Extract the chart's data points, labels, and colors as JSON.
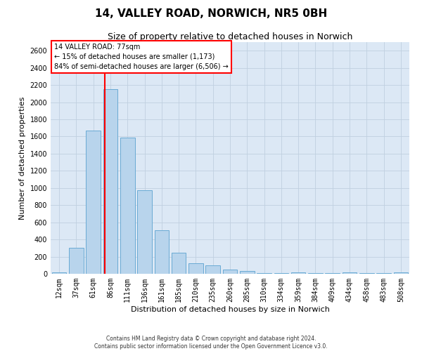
{
  "title": "14, VALLEY ROAD, NORWICH, NR5 0BH",
  "subtitle": "Size of property relative to detached houses in Norwich",
  "xlabel": "Distribution of detached houses by size in Norwich",
  "ylabel": "Number of detached properties",
  "categories": [
    "12sqm",
    "37sqm",
    "61sqm",
    "86sqm",
    "111sqm",
    "136sqm",
    "161sqm",
    "185sqm",
    "210sqm",
    "235sqm",
    "260sqm",
    "285sqm",
    "310sqm",
    "334sqm",
    "359sqm",
    "384sqm",
    "409sqm",
    "434sqm",
    "458sqm",
    "483sqm",
    "508sqm"
  ],
  "values": [
    20,
    300,
    1670,
    2150,
    1590,
    970,
    510,
    245,
    120,
    100,
    50,
    35,
    5,
    5,
    20,
    5,
    5,
    20,
    5,
    5,
    20
  ],
  "bar_color": "#b8d4ec",
  "bar_edge_color": "#6aaad4",
  "annotation_title": "14 VALLEY ROAD: 77sqm",
  "annotation_line1": "← 15% of detached houses are smaller (1,173)",
  "annotation_line2": "84% of semi-detached houses are larger (6,506) →",
  "property_bar_index": 3,
  "ylim": [
    0,
    2700
  ],
  "yticks": [
    0,
    200,
    400,
    600,
    800,
    1000,
    1200,
    1400,
    1600,
    1800,
    2000,
    2200,
    2400,
    2600
  ],
  "footnote1": "Contains HM Land Registry data © Crown copyright and database right 2024.",
  "footnote2": "Contains public sector information licensed under the Open Government Licence v3.0.",
  "bg_color": "#ffffff",
  "plot_bg_color": "#dce8f5",
  "grid_color": "#c0d0e0",
  "title_fontsize": 11,
  "subtitle_fontsize": 9,
  "ylabel_fontsize": 8,
  "xlabel_fontsize": 8,
  "tick_fontsize": 7,
  "annot_fontsize": 7,
  "footnote_fontsize": 5.5
}
